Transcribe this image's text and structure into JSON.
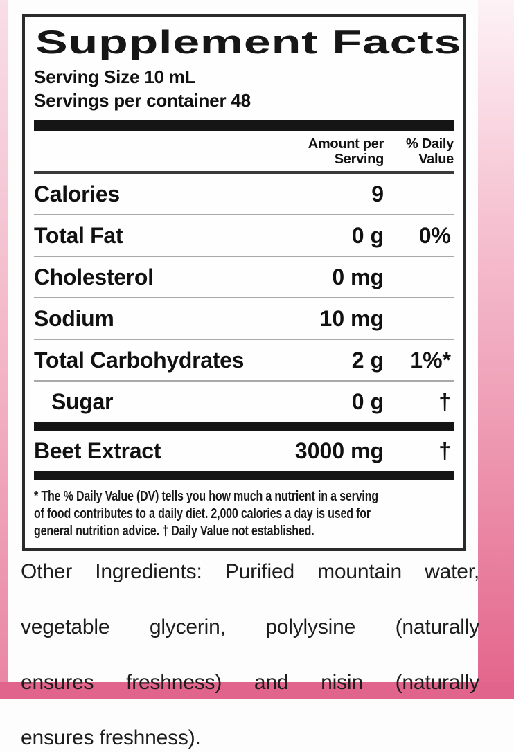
{
  "colors": {
    "pink_dark": "#e0648b",
    "pink_mid": "#ee9cb4",
    "pink_light": "#fdf2f6",
    "panel_border": "#2b2b2b",
    "text": "#111111"
  },
  "label": {
    "title": "Supplement Facts",
    "serving_size": "Serving Size 10 mL",
    "servings_per_container": "Servings per container 48",
    "columns": {
      "amount": "Amount per\nServing",
      "daily_value": "% Daily\nValue"
    },
    "rows": [
      {
        "name": "Calories",
        "amount": "9",
        "dv": ""
      },
      {
        "name": "Total Fat",
        "amount": "0 g",
        "dv": "0%"
      },
      {
        "name": "Cholesterol",
        "amount": "0 mg",
        "dv": ""
      },
      {
        "name": "Sodium",
        "amount": "10 mg",
        "dv": ""
      },
      {
        "name": "Total Carbohydrates",
        "amount": "2 g",
        "dv": "1%*"
      },
      {
        "name": "Sugar",
        "amount": "0 g",
        "dv": "†"
      }
    ],
    "extract_row": {
      "name": "Beet Extract",
      "amount": "3000 mg",
      "dv": "†"
    },
    "footnote_lines": [
      "* The % Daily Value (DV) tells you how much a nutrient in a serving",
      "of food contributes to a daily diet. 2,000 calories a day is used for",
      "general nutrition advice.   † Daily Value not established."
    ]
  },
  "other_ingredients": {
    "lines": [
      "Other Ingredients:  Purified mountain water,",
      "vegetable glycerin, polylysine (naturally",
      "ensures freshness) and nisin (naturally",
      "ensures freshness)."
    ]
  }
}
